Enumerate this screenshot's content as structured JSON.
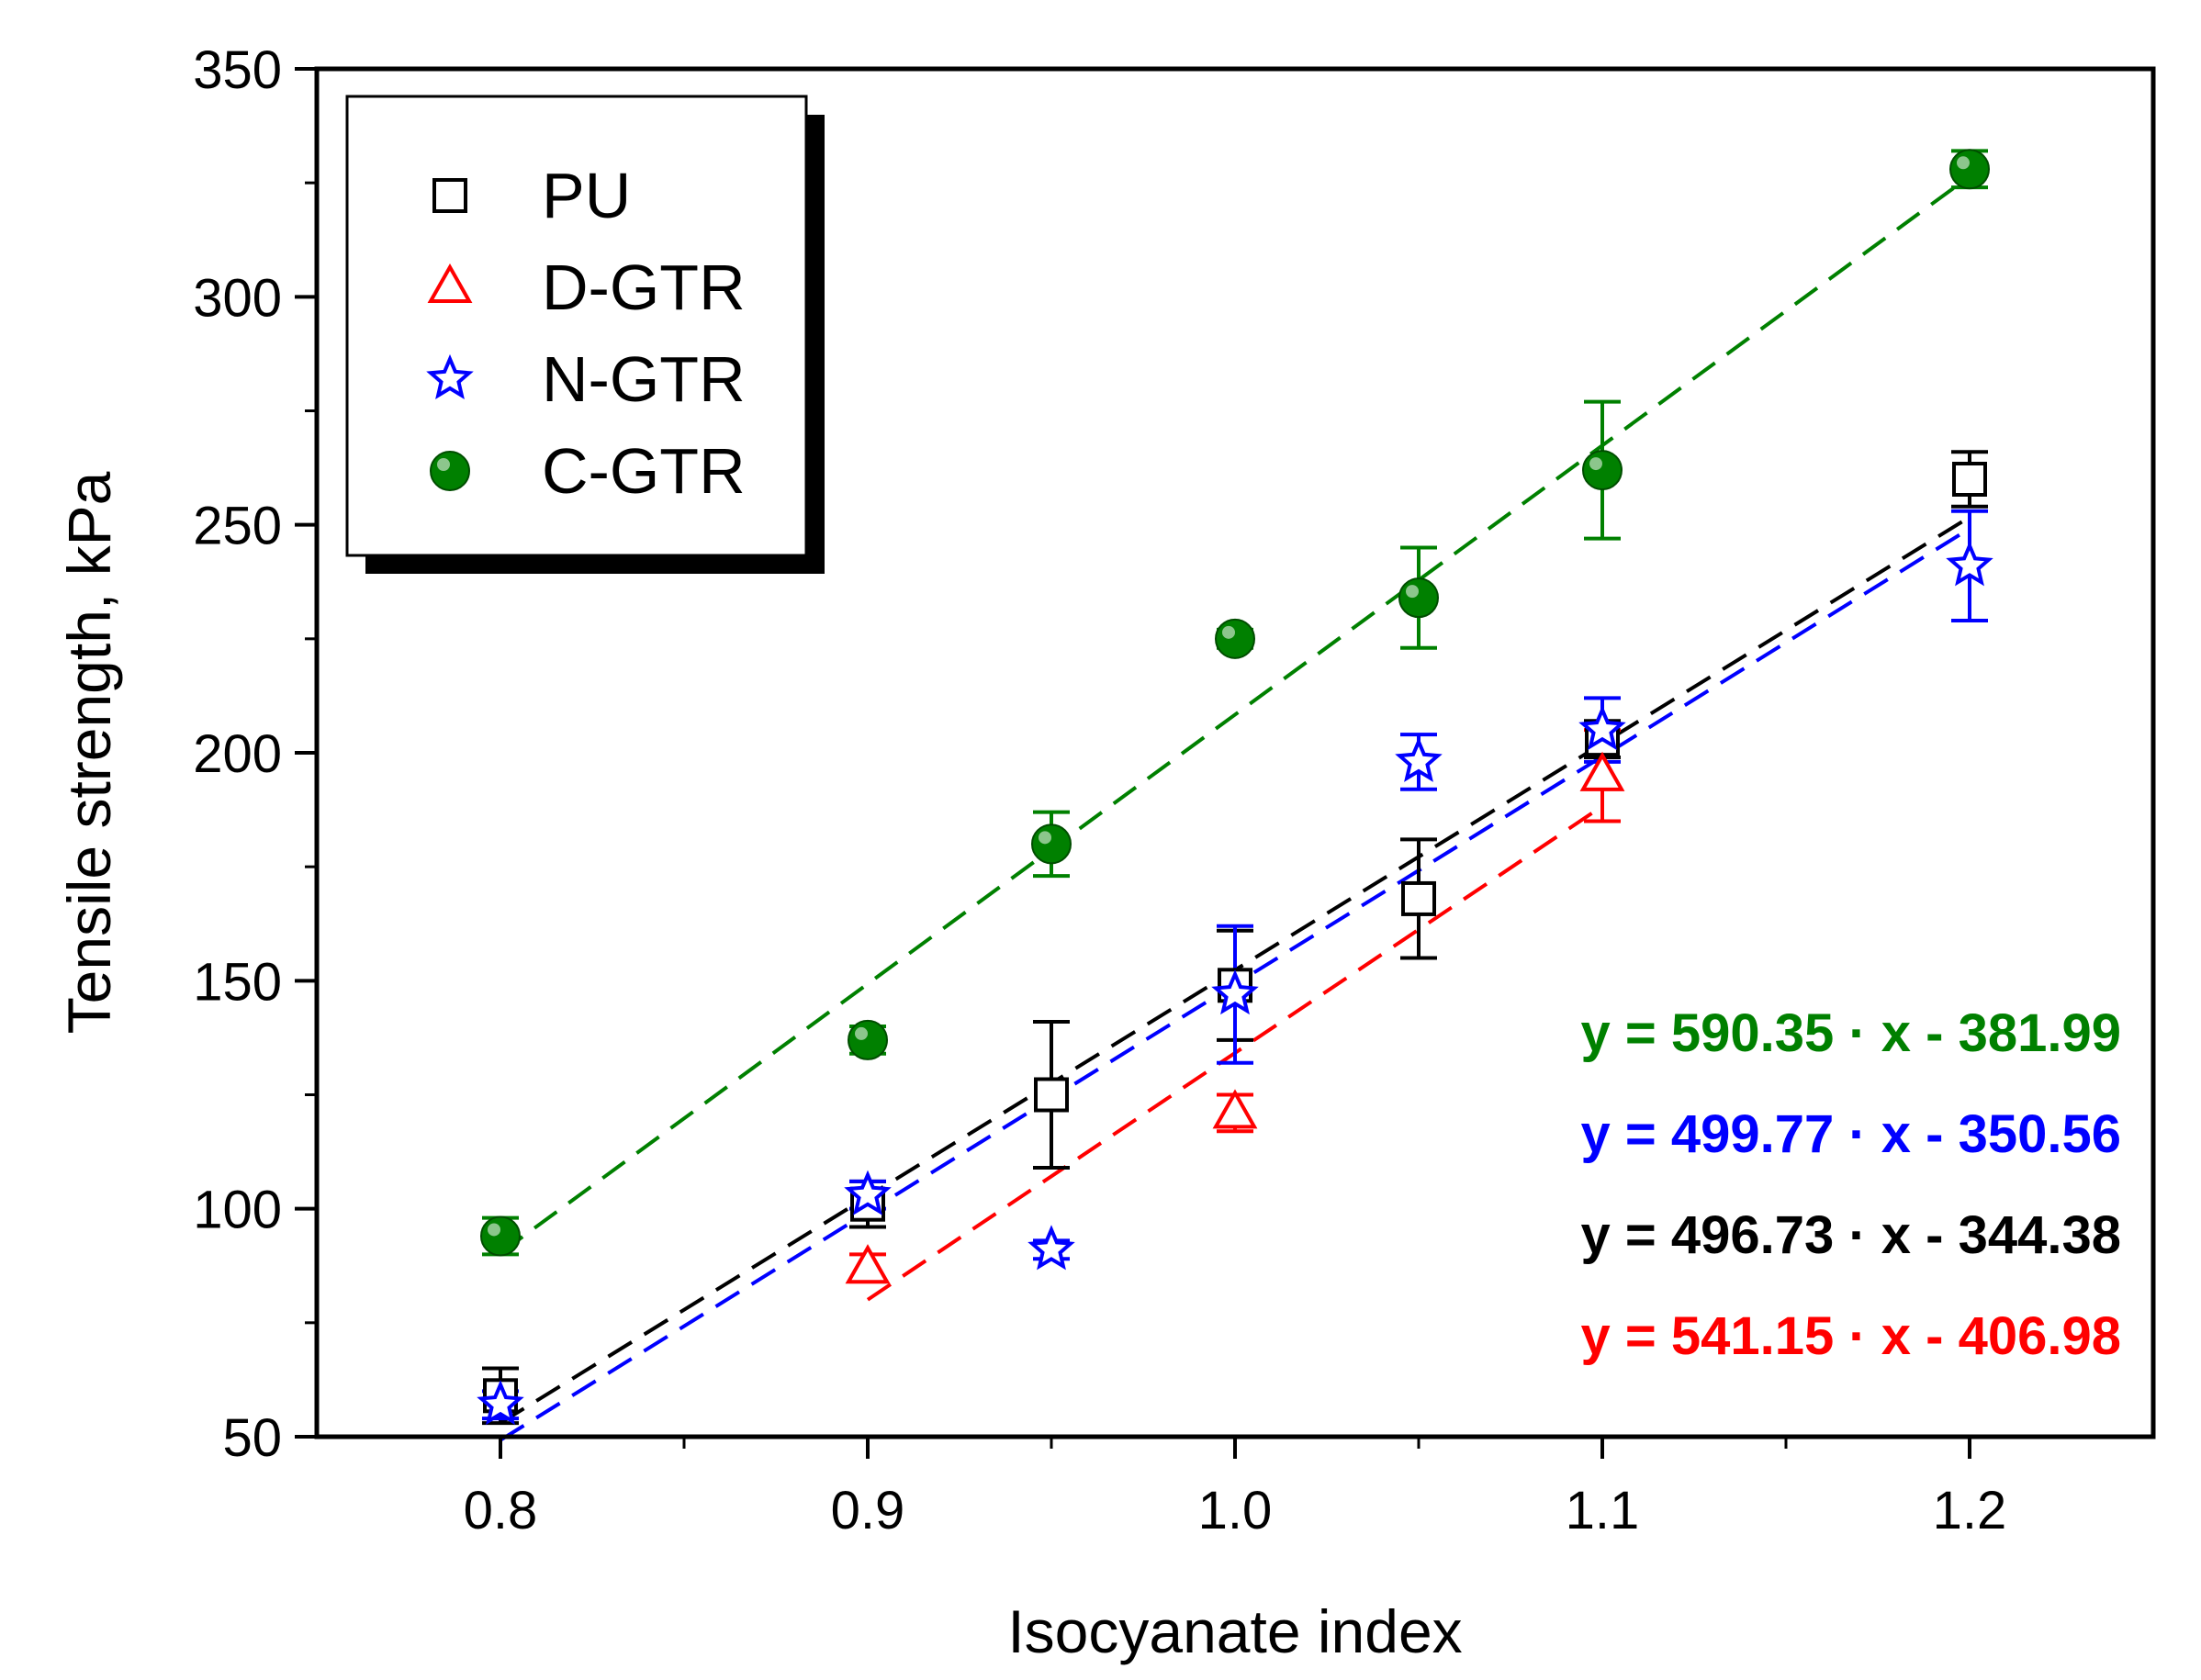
{
  "chart_data": {
    "type": "scatter",
    "xlabel": "Isocyanate index",
    "ylabel": "Tensile strength, kPa",
    "xlim": [
      0.75,
      1.25
    ],
    "ylim": [
      50,
      350
    ],
    "x_ticks": [
      {
        "value": 0.8,
        "label": "0.8"
      },
      {
        "value": 0.9,
        "label": "0.9"
      },
      {
        "value": 1.0,
        "label": "1.0"
      },
      {
        "value": 1.1,
        "label": "1.1"
      },
      {
        "value": 1.2,
        "label": "1.2"
      }
    ],
    "y_ticks": [
      {
        "value": 50,
        "label": "50"
      },
      {
        "value": 100,
        "label": "100"
      },
      {
        "value": 150,
        "label": "150"
      },
      {
        "value": 200,
        "label": "200"
      },
      {
        "value": 250,
        "label": "250"
      },
      {
        "value": 300,
        "label": "300"
      },
      {
        "value": 350,
        "label": "350"
      }
    ],
    "legend_position": "top-left",
    "series": [
      {
        "name": "PU",
        "marker": "square",
        "color": "#000000",
        "legend_label": "PU",
        "points": [
          {
            "x": 0.8,
            "y": 59,
            "err": 6
          },
          {
            "x": 0.9,
            "y": 101,
            "err": 5
          },
          {
            "x": 0.95,
            "y": 125,
            "err": 16
          },
          {
            "x": 1.0,
            "y": 149,
            "err": 12
          },
          {
            "x": 1.05,
            "y": 168,
            "err": 13
          },
          {
            "x": 1.1,
            "y": 203,
            "err": 4
          },
          {
            "x": 1.2,
            "y": 260,
            "err": 6
          }
        ],
        "fit": {
          "slope": 496.73,
          "intercept": -344.38,
          "x_range": [
            0.8,
            1.2
          ]
        },
        "equation": "y = 496.73 · x - 344.38"
      },
      {
        "name": "D-GTR",
        "marker": "triangle",
        "color": "#ff0000",
        "legend_label": "D-GTR",
        "points": [
          {
            "x": 0.9,
            "y": 87,
            "err": 3
          },
          {
            "x": 1.0,
            "y": 121,
            "err": 4
          },
          {
            "x": 1.1,
            "y": 195,
            "err": 10
          }
        ],
        "fit": {
          "slope": 541.15,
          "intercept": -406.98,
          "x_range": [
            0.9,
            1.1
          ]
        },
        "equation": "y = 541.15 · x - 406.98"
      },
      {
        "name": "N-GTR",
        "marker": "star",
        "color": "#0000ff",
        "legend_label": "N-GTR",
        "points": [
          {
            "x": 0.8,
            "y": 57,
            "err": 3
          },
          {
            "x": 0.9,
            "y": 103,
            "err": 3
          },
          {
            "x": 0.95,
            "y": 91,
            "err": 2
          },
          {
            "x": 1.0,
            "y": 147,
            "err": 15
          },
          {
            "x": 1.05,
            "y": 198,
            "err": 6
          },
          {
            "x": 1.1,
            "y": 205,
            "err": 7
          },
          {
            "x": 1.2,
            "y": 241,
            "err": 12
          }
        ],
        "fit": {
          "slope": 499.77,
          "intercept": -350.56,
          "x_range": [
            0.8,
            1.2
          ]
        },
        "equation": "y = 499.77 · x - 350.56"
      },
      {
        "name": "C-GTR",
        "marker": "circle",
        "color": "#008000",
        "legend_label": "C-GTR",
        "points": [
          {
            "x": 0.8,
            "y": 94,
            "err": 4
          },
          {
            "x": 0.9,
            "y": 137,
            "err": 3
          },
          {
            "x": 0.95,
            "y": 180,
            "err": 7
          },
          {
            "x": 1.0,
            "y": 225,
            "err": 2
          },
          {
            "x": 1.05,
            "y": 234,
            "err": 11
          },
          {
            "x": 1.1,
            "y": 262,
            "err": 15
          },
          {
            "x": 1.2,
            "y": 328,
            "err": 4
          }
        ],
        "fit": {
          "slope": 590.35,
          "intercept": -381.99,
          "x_range": [
            0.8,
            1.2
          ]
        },
        "equation": "y = 590.35 · x - 381.99"
      }
    ],
    "equation_order": [
      "C-GTR",
      "N-GTR",
      "PU",
      "D-GTR"
    ]
  }
}
